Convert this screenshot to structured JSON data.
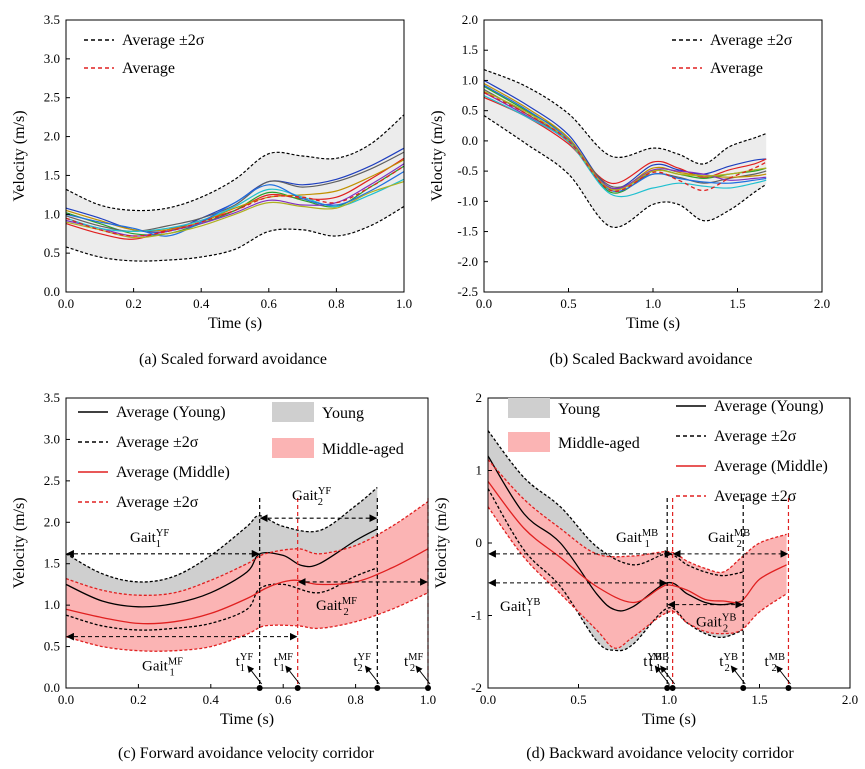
{
  "captions": {
    "a": "(a) Scaled forward avoidance",
    "b": "(b) Scaled Backward avoidance",
    "c": "(c) Forward avoidance velocity corridor",
    "d": "(d) Backward avoidance velocity corridor"
  },
  "colors": {
    "grey_band": "#ececec",
    "young_band": "#cfcfcf",
    "middle_band": "#fbb4b4",
    "red": "#e02020",
    "black": "#000000",
    "trial_colors": [
      "#1f3fbf",
      "#e02020",
      "#2aa02a",
      "#606060",
      "#c09000",
      "#8030c0",
      "#20c0d0",
      "#2070e0",
      "#b0b020"
    ]
  },
  "chart_data": [
    {
      "id": "a",
      "type": "line",
      "title": "(a) Scaled forward avoidance",
      "xlabel": "Time (s)",
      "ylabel": "Velocity (m/s)",
      "xlim": [
        0.0,
        1.0
      ],
      "ylim": [
        0.0,
        3.5
      ],
      "xticks": [
        "0.0",
        "0.2",
        "0.4",
        "0.6",
        "0.8",
        "1.0"
      ],
      "yticks": [
        "0.0",
        "0.5",
        "1.0",
        "1.5",
        "2.0",
        "2.5",
        "3.0",
        "3.5"
      ],
      "legend": [
        "Average ±2σ",
        "Average"
      ],
      "x": [
        0.0,
        0.1,
        0.2,
        0.3,
        0.4,
        0.5,
        0.6,
        0.7,
        0.8,
        0.9,
        1.0
      ],
      "upper": [
        1.32,
        1.12,
        1.05,
        1.08,
        1.22,
        1.45,
        1.78,
        1.75,
        1.72,
        1.9,
        2.28
      ],
      "lower": [
        0.58,
        0.45,
        0.4,
        0.41,
        0.45,
        0.55,
        0.78,
        0.8,
        0.72,
        0.85,
        1.1
      ],
      "average": [
        0.95,
        0.8,
        0.72,
        0.78,
        0.9,
        1.05,
        1.22,
        1.22,
        1.15,
        1.35,
        1.62
      ],
      "trials": [
        [
          1.08,
          0.95,
          0.8,
          0.78,
          0.95,
          1.15,
          1.42,
          1.38,
          1.45,
          1.62,
          1.85
        ],
        [
          0.88,
          0.75,
          0.68,
          0.8,
          0.92,
          1.05,
          1.25,
          1.2,
          1.22,
          1.45,
          1.72
        ],
        [
          1.02,
          0.88,
          0.75,
          0.75,
          0.88,
          1.05,
          1.28,
          1.18,
          1.1,
          1.35,
          1.62
        ],
        [
          0.98,
          0.85,
          0.78,
          0.85,
          0.95,
          1.12,
          1.42,
          1.35,
          1.42,
          1.58,
          1.8
        ],
        [
          1.05,
          0.92,
          0.8,
          0.8,
          0.9,
          1.08,
          1.22,
          1.25,
          1.3,
          1.48,
          1.7
        ],
        [
          0.92,
          0.82,
          0.72,
          0.78,
          0.88,
          1.02,
          1.18,
          1.12,
          1.15,
          1.38,
          1.65
        ],
        [
          0.95,
          0.82,
          0.78,
          0.82,
          0.92,
          1.1,
          1.32,
          1.22,
          1.1,
          1.25,
          1.45
        ],
        [
          1.0,
          0.9,
          0.82,
          0.72,
          0.9,
          1.15,
          1.38,
          1.2,
          1.12,
          1.3,
          1.55
        ],
        [
          0.9,
          0.8,
          0.7,
          0.75,
          0.85,
          1.0,
          1.15,
          1.1,
          1.08,
          1.28,
          1.42
        ]
      ]
    },
    {
      "id": "b",
      "type": "line",
      "title": "(b) Scaled Backward avoidance",
      "xlabel": "Time (s)",
      "ylabel": "Velocity (m/s)",
      "xlim": [
        0.0,
        2.0
      ],
      "ylim": [
        -2.5,
        2.0
      ],
      "xticks": [
        "0.0",
        "0.5",
        "1.0",
        "1.5",
        "2.0"
      ],
      "yticks": [
        "-2.5",
        "-2.0",
        "-1.5",
        "-1.0",
        "-0.5",
        "0.0",
        "0.5",
        "1.0",
        "1.5",
        "2.0"
      ],
      "legend": [
        "Average ±2σ",
        "Average"
      ],
      "x": [
        0.0,
        0.25,
        0.5,
        0.75,
        1.0,
        1.15,
        1.3,
        1.45,
        1.6,
        1.67
      ],
      "upper": [
        1.18,
        0.9,
        0.45,
        -0.25,
        -0.12,
        -0.22,
        -0.38,
        -0.1,
        0.05,
        0.12
      ],
      "lower": [
        0.42,
        -0.05,
        -0.55,
        -1.42,
        -1.05,
        -1.05,
        -1.32,
        -1.15,
        -0.85,
        -0.72
      ],
      "average": [
        0.8,
        0.45,
        0.0,
        -0.82,
        -0.52,
        -0.65,
        -0.82,
        -0.62,
        -0.45,
        -0.35
      ],
      "trials": [
        [
          1.0,
          0.6,
          0.1,
          -0.78,
          -0.4,
          -0.48,
          -0.55,
          -0.42,
          -0.32,
          -0.3
        ],
        [
          0.72,
          0.4,
          -0.05,
          -0.7,
          -0.35,
          -0.45,
          -0.6,
          -0.48,
          -0.38,
          -0.3
        ],
        [
          0.9,
          0.5,
          0.05,
          -0.85,
          -0.5,
          -0.55,
          -0.62,
          -0.55,
          -0.5,
          -0.45
        ],
        [
          0.85,
          0.45,
          0.0,
          -0.75,
          -0.55,
          -0.6,
          -0.7,
          -0.62,
          -0.55,
          -0.5
        ],
        [
          0.95,
          0.55,
          0.05,
          -0.8,
          -0.45,
          -0.52,
          -0.58,
          -0.6,
          -0.58,
          -0.55
        ],
        [
          0.8,
          0.42,
          -0.02,
          -0.78,
          -0.48,
          -0.5,
          -0.55,
          -0.65,
          -0.62,
          -0.6
        ],
        [
          0.75,
          0.4,
          -0.02,
          -0.88,
          -0.78,
          -0.7,
          -0.75,
          -0.78,
          -0.7,
          -0.65
        ],
        [
          0.92,
          0.52,
          0.02,
          -0.82,
          -0.55,
          -0.62,
          -0.68,
          -0.7,
          -0.65,
          -0.62
        ],
        [
          0.82,
          0.48,
          0.0,
          -0.8,
          -0.5,
          -0.55,
          -0.58,
          -0.55,
          -0.48,
          -0.45
        ]
      ]
    },
    {
      "id": "c",
      "type": "area",
      "title": "(c) Forward avoidance velocity corridor",
      "xlabel": "Time (s)",
      "ylabel": "Velocity (m/s)",
      "xlim": [
        0.0,
        1.0
      ],
      "ylim": [
        0.0,
        3.5
      ],
      "xticks": [
        "0.0",
        "0.2",
        "0.4",
        "0.6",
        "0.8",
        "1.0"
      ],
      "yticks": [
        "0.0",
        "0.5",
        "1.0",
        "1.5",
        "2.0",
        "2.5",
        "3.0",
        "3.5"
      ],
      "legend": [
        "Average (Young)",
        "Average ±2σ",
        "Average (Middle)",
        "Average ±2σ",
        "Young",
        "Middle-aged"
      ],
      "series": [
        {
          "name": "Average (Young)",
          "x": [
            0.0,
            0.1,
            0.2,
            0.3,
            0.4,
            0.5,
            0.535,
            0.6,
            0.65,
            0.7,
            0.8,
            0.86
          ],
          "values": [
            1.25,
            1.05,
            0.98,
            1.02,
            1.15,
            1.4,
            1.62,
            1.6,
            1.48,
            1.5,
            1.78,
            1.92
          ]
        },
        {
          "name": "Young upper ±2σ",
          "x": [
            0.0,
            0.1,
            0.2,
            0.3,
            0.4,
            0.5,
            0.535,
            0.6,
            0.7,
            0.8,
            0.86
          ],
          "values": [
            1.62,
            1.38,
            1.28,
            1.35,
            1.6,
            1.95,
            2.08,
            1.95,
            1.9,
            2.2,
            2.42
          ]
        },
        {
          "name": "Young lower ±2σ",
          "x": [
            0.0,
            0.1,
            0.2,
            0.3,
            0.4,
            0.5,
            0.535,
            0.6,
            0.7,
            0.8,
            0.86
          ],
          "values": [
            0.88,
            0.75,
            0.7,
            0.72,
            0.78,
            0.95,
            1.2,
            1.25,
            1.15,
            1.35,
            1.45
          ]
        },
        {
          "name": "Average (Middle)",
          "x": [
            0.0,
            0.1,
            0.2,
            0.3,
            0.4,
            0.5,
            0.55,
            0.6,
            0.64,
            0.7,
            0.8,
            0.9,
            1.0
          ],
          "values": [
            0.95,
            0.85,
            0.78,
            0.8,
            0.9,
            1.08,
            1.2,
            1.28,
            1.3,
            1.25,
            1.28,
            1.45,
            1.68
          ]
        },
        {
          "name": "Middle upper ±2σ",
          "x": [
            0.0,
            0.1,
            0.2,
            0.3,
            0.4,
            0.5,
            0.55,
            0.64,
            0.7,
            0.8,
            0.9,
            1.0
          ],
          "values": [
            1.32,
            1.18,
            1.12,
            1.15,
            1.3,
            1.5,
            1.62,
            1.68,
            1.62,
            1.72,
            1.95,
            2.25
          ]
        },
        {
          "name": "Middle lower ±2σ",
          "x": [
            0.0,
            0.1,
            0.2,
            0.3,
            0.4,
            0.5,
            0.55,
            0.64,
            0.7,
            0.8,
            0.9,
            1.0
          ],
          "values": [
            0.62,
            0.5,
            0.45,
            0.45,
            0.5,
            0.65,
            0.75,
            0.75,
            0.72,
            0.8,
            0.95,
            1.15
          ]
        }
      ],
      "events": [
        {
          "label": "t",
          "sup": "YF",
          "sub": "1",
          "x": 0.535
        },
        {
          "label": "t",
          "sup": "MF",
          "sub": "1",
          "x": 0.64
        },
        {
          "label": "t",
          "sup": "YF",
          "sub": "2",
          "x": 0.86
        },
        {
          "label": "t",
          "sup": "MF",
          "sub": "2",
          "x": 1.0
        }
      ],
      "gait_annotations": [
        {
          "label": "Gait",
          "sup": "YF",
          "sub": "1",
          "x0": 0.0,
          "x1": 0.535,
          "y": 1.62
        },
        {
          "label": "Gait",
          "sup": "YF",
          "sub": "2",
          "x0": 0.535,
          "x1": 0.86,
          "y": 2.05
        },
        {
          "label": "Gait",
          "sup": "MF",
          "sub": "1",
          "x0": 0.0,
          "x1": 0.64,
          "y": 0.62
        },
        {
          "label": "Gait",
          "sup": "MF",
          "sub": "2",
          "x0": 0.64,
          "x1": 1.0,
          "y": 1.28
        }
      ]
    },
    {
      "id": "d",
      "type": "area",
      "title": "(d) Backward avoidance velocity corridor",
      "xlabel": "Time (s)",
      "ylabel": "Velocity (m/s)",
      "xlim": [
        0.0,
        2.0
      ],
      "ylim": [
        -2,
        2
      ],
      "xticks": [
        "0.0",
        "0.5",
        "1.0",
        "1.5",
        "2.0"
      ],
      "yticks": [
        "-2",
        "-1",
        "0",
        "1",
        "2"
      ],
      "legend": [
        "Young",
        "Middle-aged",
        "Average (Young)",
        "Average ±2σ",
        "Average (Middle)",
        "Average ±2σ"
      ],
      "series": [
        {
          "name": "Average (Young)",
          "x": [
            0.0,
            0.2,
            0.4,
            0.6,
            0.7,
            0.8,
            0.99,
            1.1,
            1.2,
            1.3,
            1.41
          ],
          "values": [
            1.2,
            0.4,
            0.0,
            -0.7,
            -0.92,
            -0.88,
            -0.55,
            -0.7,
            -0.82,
            -0.85,
            -0.8
          ]
        },
        {
          "name": "Young upper ±2σ",
          "x": [
            0.0,
            0.2,
            0.4,
            0.6,
            0.8,
            0.99,
            1.1,
            1.2,
            1.3,
            1.41
          ],
          "values": [
            1.55,
            0.9,
            0.5,
            -0.05,
            -0.3,
            -0.15,
            -0.3,
            -0.4,
            -0.45,
            -0.4
          ]
        },
        {
          "name": "Young lower ±2σ",
          "x": [
            0.0,
            0.2,
            0.4,
            0.6,
            0.7,
            0.8,
            0.99,
            1.1,
            1.2,
            1.3,
            1.41
          ],
          "values": [
            0.75,
            -0.1,
            -0.6,
            -1.35,
            -1.48,
            -1.4,
            -0.9,
            -1.1,
            -1.25,
            -1.3,
            -1.2
          ]
        },
        {
          "name": "Average (Middle)",
          "x": [
            0.0,
            0.2,
            0.4,
            0.6,
            0.8,
            0.95,
            1.0,
            1.1,
            1.2,
            1.3,
            1.4,
            1.5,
            1.65
          ],
          "values": [
            0.85,
            0.2,
            -0.2,
            -0.6,
            -0.82,
            -0.62,
            -0.58,
            -0.65,
            -0.78,
            -0.8,
            -0.8,
            -0.5,
            -0.3
          ]
        },
        {
          "name": "Middle upper ±2σ",
          "x": [
            0.0,
            0.2,
            0.4,
            0.6,
            0.8,
            1.0,
            1.1,
            1.2,
            1.3,
            1.4,
            1.5,
            1.65
          ],
          "values": [
            1.15,
            0.6,
            0.2,
            -0.15,
            -0.18,
            -0.12,
            -0.25,
            -0.35,
            -0.4,
            -0.2,
            0.0,
            0.12
          ]
        },
        {
          "name": "Middle lower ±2σ",
          "x": [
            0.0,
            0.2,
            0.4,
            0.6,
            0.7,
            0.8,
            1.0,
            1.1,
            1.2,
            1.3,
            1.4,
            1.5,
            1.65
          ],
          "values": [
            0.5,
            -0.2,
            -0.7,
            -1.2,
            -1.45,
            -1.3,
            -0.95,
            -1.1,
            -1.22,
            -1.25,
            -1.2,
            -0.95,
            -0.7
          ]
        }
      ],
      "events": [
        {
          "label": "t",
          "sup": "YB",
          "sub": "1",
          "x": 0.99
        },
        {
          "label": "t",
          "sup": "MB",
          "sub": "1",
          "x": 1.02
        },
        {
          "label": "t",
          "sup": "YB",
          "sub": "2",
          "x": 1.41
        },
        {
          "label": "t",
          "sup": "MB",
          "sub": "2",
          "x": 1.66
        }
      ],
      "gait_annotations": [
        {
          "label": "Gait",
          "sup": "MB",
          "sub": "1",
          "x0": 0.0,
          "x1": 1.02,
          "y": -0.15
        },
        {
          "label": "Gait",
          "sup": "MB",
          "sub": "2",
          "x0": 1.02,
          "x1": 1.66,
          "y": -0.15
        },
        {
          "label": "Gait",
          "sup": "YB",
          "sub": "1",
          "x0": 0.0,
          "x1": 0.99,
          "y": -0.55
        },
        {
          "label": "Gait",
          "sup": "YB",
          "sub": "2",
          "x0": 0.99,
          "x1": 1.41,
          "y": -0.85
        }
      ]
    }
  ]
}
